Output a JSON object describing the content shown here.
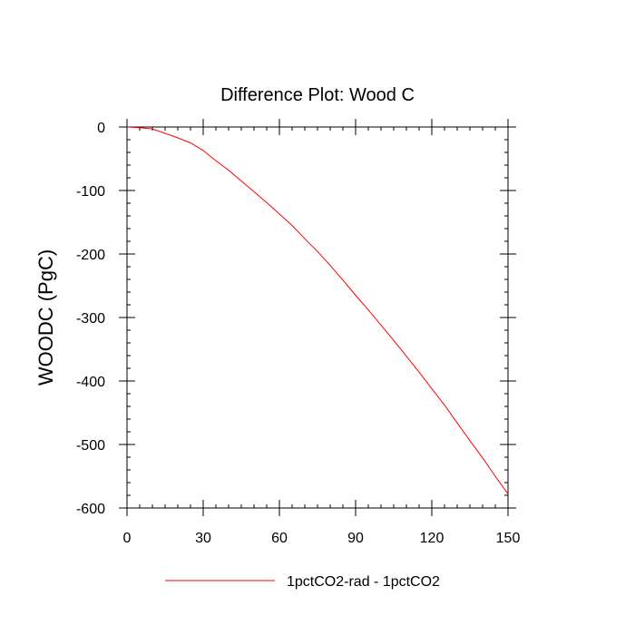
{
  "chart_data": {
    "type": "line",
    "title": "Difference Plot: Wood C",
    "xlabel": "",
    "ylabel": "WOODC  (PgC)",
    "xlim": [
      0,
      150
    ],
    "ylim": [
      -600,
      0
    ],
    "x_ticks": [
      0,
      30,
      60,
      90,
      120,
      150
    ],
    "y_ticks": [
      0,
      -100,
      -200,
      -300,
      -400,
      -500,
      -600
    ],
    "x_tick_labels": [
      "0",
      "30",
      "60",
      "90",
      "120",
      "150"
    ],
    "y_tick_labels": [
      "0",
      "-100",
      "-200",
      "-300",
      "-400",
      "-500",
      "-600"
    ],
    "grid": false,
    "legend": "bottom-center",
    "series": [
      {
        "name": "1pctCO2-rad - 1pctCO2",
        "color": "#ff0000",
        "x": [
          0,
          5,
          10,
          15,
          20,
          25,
          30,
          35,
          40,
          45,
          50,
          55,
          60,
          65,
          70,
          75,
          80,
          85,
          90,
          95,
          100,
          105,
          110,
          115,
          120,
          125,
          130,
          135,
          140,
          145,
          150
        ],
        "y": [
          0,
          -1,
          -3,
          -10,
          -17,
          -25,
          -37,
          -53,
          -68,
          -85,
          -102,
          -119,
          -137,
          -155,
          -176,
          -196,
          -218,
          -241,
          -265,
          -288,
          -312,
          -336,
          -361,
          -386,
          -412,
          -438,
          -466,
          -494,
          -521,
          -550,
          -578
        ]
      }
    ]
  }
}
